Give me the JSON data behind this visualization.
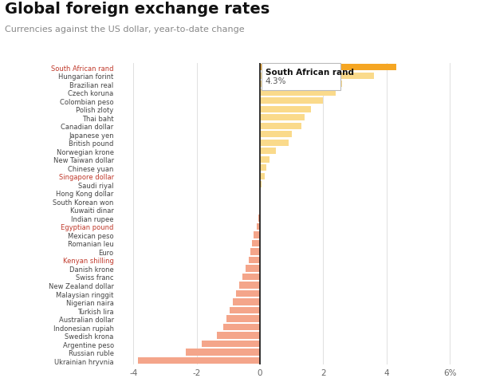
{
  "title": "Global foreign exchange rates",
  "subtitle": "Currencies against the US dollar, year-to-date change",
  "currencies": [
    "South African rand",
    "Hungarian forint",
    "Brazilian real",
    "Czech koruna",
    "Colombian peso",
    "Polish zloty",
    "Thai baht",
    "Canadian dollar",
    "Japanese yen",
    "British pound",
    "Norwegian krone",
    "New Taiwan dollar",
    "Chinese yuan",
    "Singapore dollar",
    "Saudi riyal",
    "Hong Kong dollar",
    "South Korean won",
    "Kuwaiti dinar",
    "Indian rupee",
    "Egyptian pound",
    "Mexican peso",
    "Romanian leu",
    "Euro",
    "Kenyan shilling",
    "Danish krone",
    "Swiss franc",
    "New Zealand dollar",
    "Malaysian ringgit",
    "Nigerian naira",
    "Turkish lira",
    "Australian dollar",
    "Indonesian rupiah",
    "Swedish krona",
    "Argentine peso",
    "Russian ruble",
    "Ukrainian hryvnia"
  ],
  "values": [
    4.3,
    3.6,
    2.6,
    2.4,
    2.0,
    1.6,
    1.4,
    1.3,
    1.0,
    0.9,
    0.5,
    0.3,
    0.2,
    0.15,
    0.05,
    0.0,
    0.0,
    0.0,
    -0.05,
    -0.1,
    -0.2,
    -0.25,
    -0.3,
    -0.35,
    -0.45,
    -0.55,
    -0.65,
    -0.75,
    -0.85,
    -0.95,
    -1.05,
    -1.15,
    -1.35,
    -1.85,
    -2.35,
    -3.85
  ],
  "highlight_index": 0,
  "highlight_color": "#F5A623",
  "positive_color": "#FADA8B",
  "negative_color": "#F4A58A",
  "tooltip_label": "South African rand",
  "tooltip_value": "4.3%",
  "xlim_left": -4.5,
  "xlim_right": 6.5,
  "xticks": [
    -4,
    -2,
    0,
    2,
    4,
    6
  ],
  "xtick_labels": [
    "-4",
    "-2",
    "0",
    "2",
    "4",
    "6%"
  ],
  "background_color": "#ffffff",
  "grid_color": "#e0e0e0",
  "label_colors": {
    "South African rand": "#c0392b",
    "Hungarian forint": "#444444",
    "Brazilian real": "#444444",
    "Czech koruna": "#444444",
    "Colombian peso": "#444444",
    "Polish zloty": "#444444",
    "Thai baht": "#444444",
    "Canadian dollar": "#444444",
    "Japanese yen": "#444444",
    "British pound": "#444444",
    "Norwegian krone": "#444444",
    "New Taiwan dollar": "#444444",
    "Chinese yuan": "#444444",
    "Singapore dollar": "#c0392b",
    "Saudi riyal": "#444444",
    "Hong Kong dollar": "#444444",
    "South Korean won": "#444444",
    "Kuwaiti dinar": "#444444",
    "Indian rupee": "#444444",
    "Egyptian pound": "#c0392b",
    "Mexican peso": "#444444",
    "Romanian leu": "#444444",
    "Euro": "#444444",
    "Kenyan shilling": "#c0392b",
    "Danish krone": "#444444",
    "Swiss franc": "#444444",
    "New Zealand dollar": "#444444",
    "Malaysian ringgit": "#444444",
    "Nigerian naira": "#444444",
    "Turkish lira": "#444444",
    "Australian dollar": "#444444",
    "Indonesian rupiah": "#444444",
    "Swedish krona": "#444444",
    "Argentine peso": "#444444",
    "Russian ruble": "#444444",
    "Ukrainian hryvnia": "#444444"
  },
  "title_fontsize": 14,
  "subtitle_fontsize": 8,
  "ytick_fontsize": 6.0,
  "xtick_fontsize": 7.5,
  "bar_height": 0.78
}
